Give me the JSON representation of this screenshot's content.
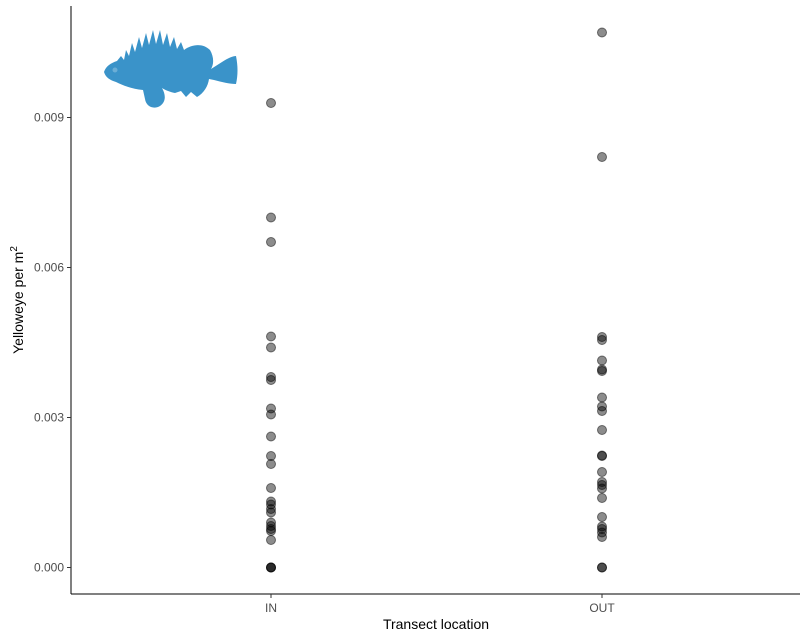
{
  "chart_data": {
    "type": "scatter",
    "xlabel": "Transect location",
    "ylabel": "Yelloweye per m",
    "ylabel_superscript": "2",
    "categories": [
      "IN",
      "OUT"
    ],
    "ylim": [
      -0.00053,
      0.01123
    ],
    "yticks": [
      0.0,
      0.003,
      0.006,
      0.009
    ],
    "ytick_labels": [
      "0.000",
      "0.003",
      "0.006",
      "0.009"
    ],
    "grid": false,
    "legend": "none",
    "point_color": "#000000",
    "icon": "yelloweye-rockfish-silhouette",
    "icon_color": "#3a93c9",
    "series": [
      {
        "category": "IN",
        "values": [
          0.00929,
          0.007,
          0.00651,
          0.00462,
          0.0044,
          0.00381,
          0.00375,
          0.00318,
          0.00306,
          0.00262,
          0.00223,
          0.00207,
          0.00159,
          0.00132,
          0.00126,
          0.00117,
          0.0011,
          0.0009,
          0.00083,
          0.00077,
          0.00073,
          0.00055,
          0.0,
          0.0,
          0.0
        ]
      },
      {
        "category": "OUT",
        "values": [
          0.0107,
          0.00821,
          0.00461,
          0.00455,
          0.00414,
          0.00396,
          0.00393,
          0.0034,
          0.00322,
          0.00313,
          0.00275,
          0.00224,
          0.00223,
          0.00191,
          0.00171,
          0.00165,
          0.00158,
          0.00139,
          0.00101,
          0.00082,
          0.00077,
          0.0007,
          0.00061,
          0.0,
          0.0
        ]
      }
    ]
  }
}
